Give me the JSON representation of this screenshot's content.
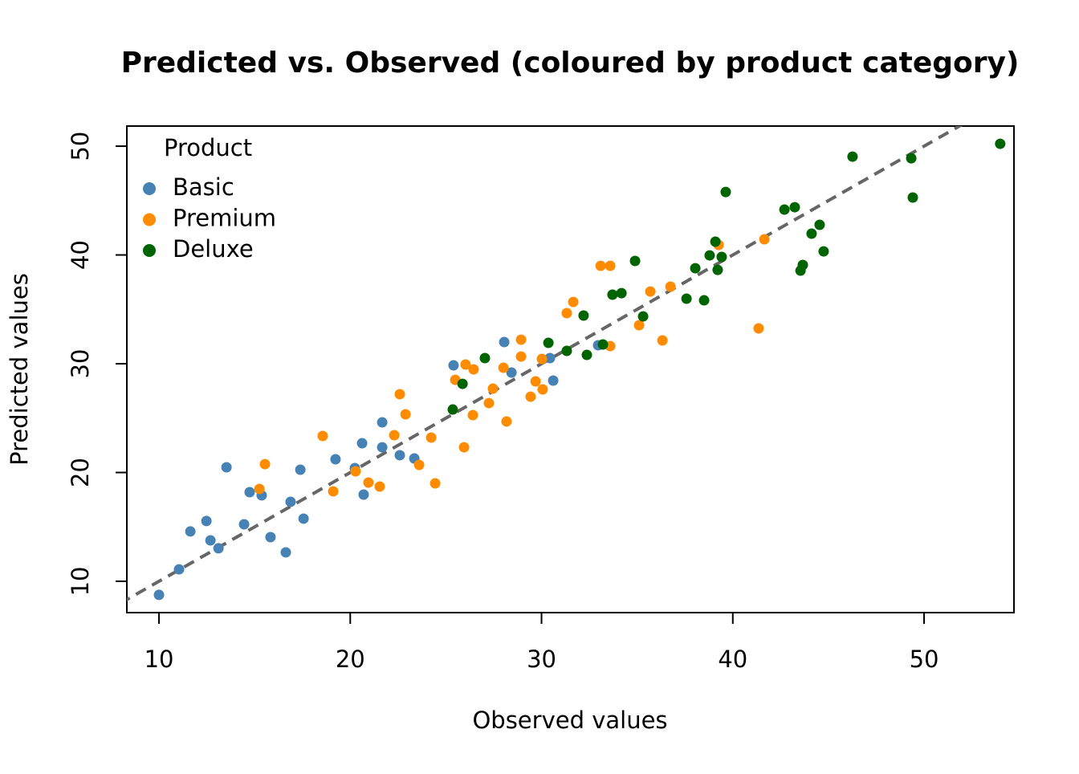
{
  "chart_data": {
    "type": "scatter",
    "title": "Predicted vs. Observed (coloured by product category)",
    "x_label": "Observed values",
    "y_label": "Predicted values",
    "xlim": [
      8.32,
      54.7
    ],
    "ylim": [
      7.12,
      51.85
    ],
    "xticks": [
      10,
      20,
      30,
      40,
      50
    ],
    "yticks": [
      10,
      20,
      30,
      40,
      50
    ],
    "identity_line": true,
    "legend_title": "Product",
    "legend": "top-left",
    "series": [
      {
        "name": "Basic",
        "color": "#4682b4",
        "x": [
          10.0,
          11.05,
          11.64,
          12.48,
          12.69,
          13.11,
          13.53,
          14.45,
          14.74,
          15.37,
          15.83,
          16.63,
          16.88,
          17.39,
          17.56,
          19.23,
          20.24,
          20.62,
          20.7,
          21.67,
          21.67,
          22.59,
          23.35,
          25.4,
          28.05,
          28.43,
          30.44,
          30.61,
          32.96
        ],
        "values": [
          8.75,
          11.1,
          14.58,
          15.54,
          13.76,
          13.03,
          20.48,
          15.24,
          18.19,
          17.9,
          14.06,
          12.66,
          17.31,
          20.26,
          15.76,
          21.22,
          20.41,
          22.69,
          17.97,
          24.61,
          22.32,
          21.59,
          21.29,
          29.85,
          31.99,
          29.19,
          30.52,
          28.45,
          31.7
        ]
      },
      {
        "name": "Premium",
        "color": "#ff8c00",
        "x": [
          15.25,
          15.54,
          18.56,
          19.11,
          20.28,
          20.95,
          21.54,
          22.3,
          22.59,
          22.89,
          23.6,
          24.23,
          24.44,
          25.49,
          25.95,
          26.03,
          26.45,
          26.41,
          27.25,
          27.46,
          28.01,
          28.17,
          28.93,
          28.93,
          29.43,
          29.69,
          30.06,
          30.02,
          31.32,
          31.66,
          33.09,
          33.59,
          33.59,
          35.1,
          35.69,
          36.32,
          36.74,
          39.26,
          41.35,
          41.65
        ],
        "values": [
          18.49,
          20.77,
          23.36,
          18.27,
          20.11,
          19.08,
          18.71,
          23.43,
          27.2,
          25.35,
          20.7,
          23.21,
          19.0,
          28.52,
          22.32,
          29.93,
          29.48,
          25.28,
          26.38,
          27.71,
          29.63,
          24.69,
          32.21,
          30.66,
          26.97,
          28.38,
          27.64,
          30.44,
          34.65,
          35.68,
          39.0,
          39.0,
          31.62,
          33.54,
          36.64,
          32.14,
          37.09,
          40.92,
          33.25,
          41.44
        ]
      },
      {
        "name": "Deluxe",
        "color": "#006400",
        "x": [
          25.36,
          25.87,
          27.04,
          30.36,
          31.32,
          32.2,
          32.37,
          33.21,
          33.71,
          34.18,
          34.89,
          35.31,
          37.58,
          38.04,
          38.5,
          38.79,
          39.09,
          39.21,
          39.42,
          39.63,
          42.7,
          43.24,
          43.54,
          43.66,
          44.12,
          44.54,
          44.75,
          46.26,
          49.33,
          49.41,
          53.98
        ],
        "values": [
          25.79,
          28.15,
          30.52,
          31.92,
          31.18,
          34.43,
          30.81,
          31.77,
          36.35,
          36.49,
          39.45,
          34.35,
          35.98,
          38.78,
          35.83,
          39.96,
          41.22,
          38.63,
          39.82,
          45.79,
          44.17,
          44.39,
          38.56,
          39.08,
          41.96,
          42.77,
          40.33,
          49.04,
          48.89,
          45.28,
          50.22
        ]
      }
    ]
  }
}
